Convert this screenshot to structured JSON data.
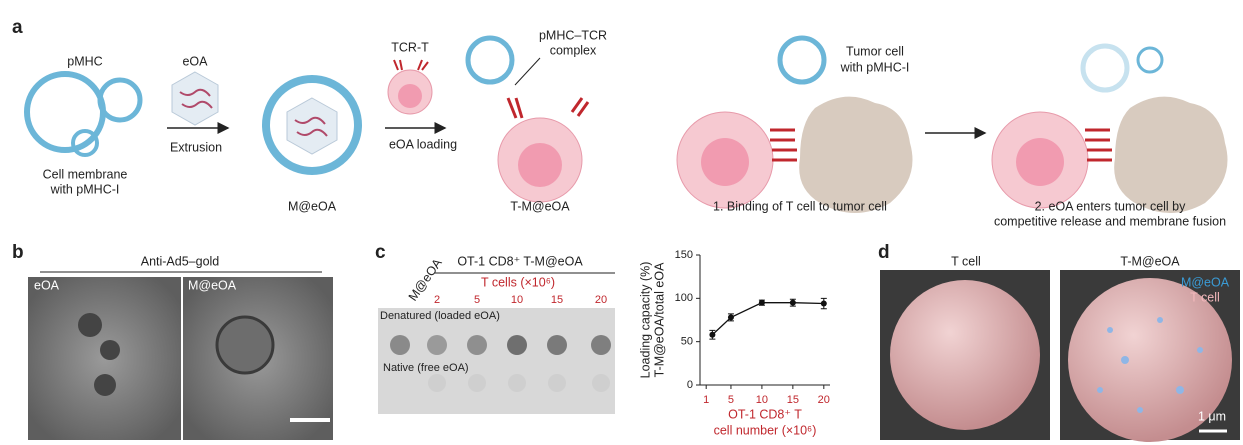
{
  "panel_a": {
    "letter": "a",
    "pmhc": "pMHC",
    "cell_membrane": [
      "Cell membrane",
      "with pMHC-I"
    ],
    "eoa": "eOA",
    "extrusion": "Extrusion",
    "m_eoa": "M@eOA",
    "tcr_t": "TCR-T",
    "eoa_loading": "eOA loading",
    "complex": [
      "pMHC–TCR",
      "complex"
    ],
    "t_m_eoa": "T-M@eOA",
    "tumor_cell": [
      "Tumor cell",
      "with pMHC-I"
    ],
    "step1": "1. Binding of T cell to tumor cell",
    "step2": [
      "2. eOA enters tumor cell by",
      "competitive release and membrane fusion"
    ]
  },
  "panel_b": {
    "letter": "b",
    "title": "Anti-Ad5–gold",
    "left_label": "eOA",
    "right_label": "M@eOA"
  },
  "panel_c": {
    "letter": "c",
    "m_eoa": "M@eOA",
    "header": "OT-1 CD8⁺ T-M@eOA",
    "subheader": "T cells (×10⁶)",
    "lanes": [
      2,
      5,
      10,
      15,
      20
    ],
    "denatured": "Denatured (loaded eOA)",
    "native": "Native (free eOA)"
  },
  "chart_data": {
    "type": "line",
    "x": [
      2,
      5,
      10,
      15,
      20
    ],
    "values": [
      58,
      78,
      95,
      95,
      94
    ],
    "errors": [
      5,
      4,
      3,
      4,
      6
    ],
    "color": "#111111",
    "xlim": [
      0,
      21
    ],
    "xticks": [
      1,
      5,
      10,
      15,
      20
    ],
    "ylim": [
      0,
      150
    ],
    "yticks": [
      0,
      50,
      100,
      150
    ],
    "ylabel": [
      "Loading capacity (%)",
      "T-M@eOA/total eOA"
    ],
    "xlabel": [
      "OT-1 CD8⁺ T",
      "cell number (×10⁶)"
    ],
    "xtick_color": "#c0272d"
  },
  "panel_d": {
    "letter": "d",
    "left_title": "T cell",
    "right_title": "T-M@eOA",
    "legend": [
      "M@eOA",
      "T cell"
    ],
    "scale": "1 μm"
  }
}
